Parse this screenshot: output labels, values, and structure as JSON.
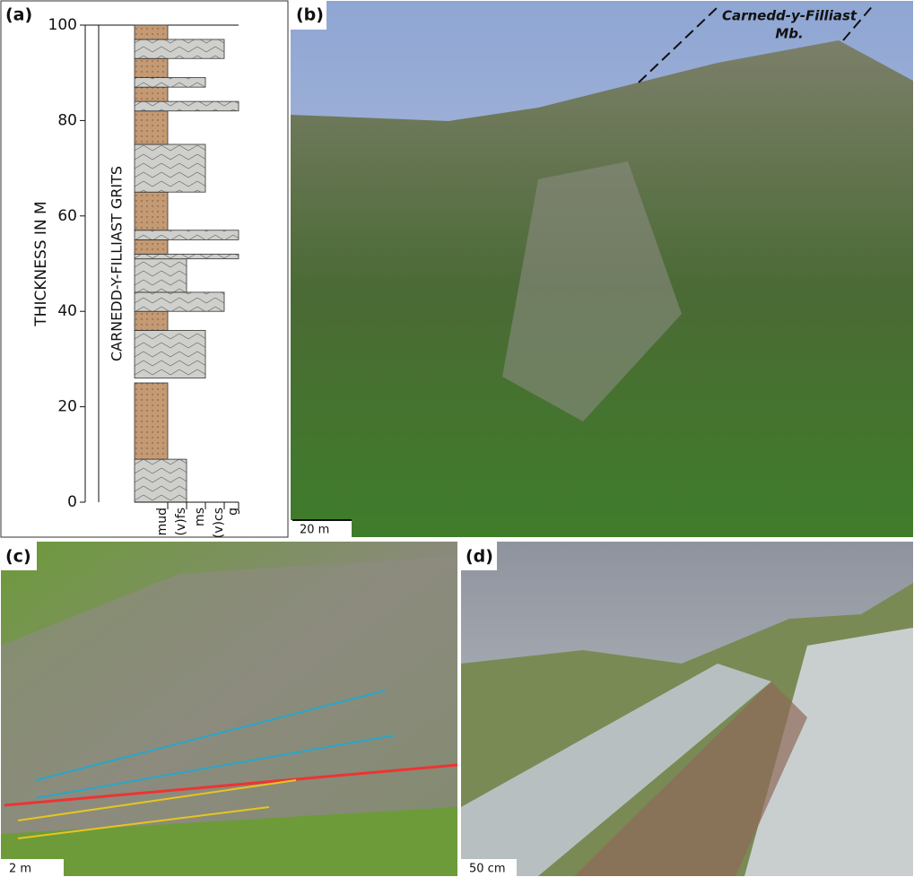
{
  "chart_data": {
    "type": "strat-log",
    "label": "(a)",
    "ylabel": "THICKNESS IN M",
    "column_label": "CARNEDD-Y-FILLIAST GRITS",
    "categories": [
      "mud",
      "(v)fs",
      "ms",
      "(v)cs",
      "g"
    ],
    "ylim": [
      0,
      100
    ],
    "yticks": [
      0,
      20,
      40,
      60,
      80,
      100
    ],
    "beds": [
      {
        "bottom": 0,
        "top": 9,
        "grain": "(v)fs"
      },
      {
        "bottom": 9,
        "top": 25,
        "grain": "mud"
      },
      {
        "bottom": 26,
        "top": 36,
        "grain": "ms"
      },
      {
        "bottom": 36,
        "top": 40,
        "grain": "mud"
      },
      {
        "bottom": 40,
        "top": 44,
        "grain": "(v)cs"
      },
      {
        "bottom": 44,
        "top": 51,
        "grain": "(v)fs"
      },
      {
        "bottom": 51,
        "top": 52,
        "grain": "g"
      },
      {
        "bottom": 52,
        "top": 55,
        "grain": "mud"
      },
      {
        "bottom": 55,
        "top": 57,
        "grain": "g"
      },
      {
        "bottom": 57,
        "top": 65,
        "grain": "mud"
      },
      {
        "bottom": 65,
        "top": 75,
        "grain": "ms"
      },
      {
        "bottom": 75,
        "top": 82,
        "grain": "mud"
      },
      {
        "bottom": 82,
        "top": 84,
        "grain": "g"
      },
      {
        "bottom": 84,
        "top": 87,
        "grain": "mud"
      },
      {
        "bottom": 87,
        "top": 89,
        "grain": "ms"
      },
      {
        "bottom": 89,
        "top": 93,
        "grain": "mud"
      },
      {
        "bottom": 93,
        "top": 97,
        "grain": "(v)cs"
      },
      {
        "bottom": 97,
        "top": 100,
        "grain": "mud"
      }
    ]
  },
  "photos": [
    {
      "label": "(b)",
      "scale_bar": "20 m",
      "annotation": [
        "Carnedd-y-Filliast",
        "Mb."
      ]
    },
    {
      "label": "(c)",
      "scale_bar": "2 m"
    },
    {
      "label": "(d)",
      "scale_bar": "50 cm"
    }
  ]
}
